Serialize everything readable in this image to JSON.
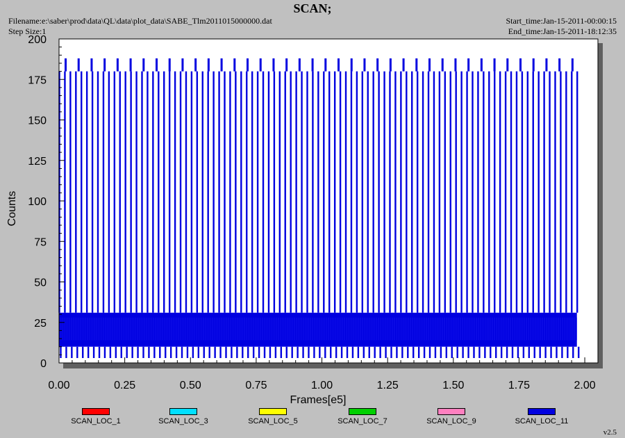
{
  "header": {
    "title": "SCAN;",
    "filename": "Filename:e:\\saber\\prod\\data\\QL\\data\\plot_data\\SABE_Tlm2011015000000.dat",
    "step_size": "Step Size:1",
    "start_time": "Start_time:Jan-15-2011-00:00:15",
    "end_time": "End_time:Jan-15-2011-18:12:35"
  },
  "footer": {
    "version": "v2.5"
  },
  "chart_data": {
    "type": "line",
    "title": "SCAN;",
    "xlabel": "Frames[e5]",
    "ylabel": "Counts",
    "xlim": [
      0,
      2.05
    ],
    "ylim": [
      0,
      200
    ],
    "x_ticks": [
      0.0,
      0.25,
      0.5,
      0.75,
      1.0,
      1.25,
      1.5,
      1.75,
      2.0
    ],
    "x_tick_labels": [
      "0.00",
      "0.25",
      "0.50",
      "0.75",
      "1.00",
      "1.25",
      "1.50",
      "1.75",
      "2.00"
    ],
    "y_ticks": [
      0,
      25,
      50,
      75,
      100,
      125,
      150,
      175,
      200
    ],
    "y_tick_labels": [
      "0",
      "25",
      "50",
      "75",
      "100",
      "125",
      "150",
      "175",
      "200"
    ],
    "grid": false,
    "legend_position": "bottom",
    "data_x_range": [
      0.0,
      1.97
    ],
    "series": [
      {
        "name": "SCAN_LOC_1",
        "color": "#ff0000"
      },
      {
        "name": "SCAN_LOC_3",
        "color": "#00e0ff"
      },
      {
        "name": "SCAN_LOC_5",
        "color": "#ffff00"
      },
      {
        "name": "SCAN_LOC_7",
        "color": "#00d000"
      },
      {
        "name": "SCAN_LOC_9",
        "color": "#ff80c0"
      },
      {
        "name": "SCAN_LOC_11",
        "color": "#0000e0",
        "baseline_band": [
          10,
          31
        ],
        "spike_level": 180,
        "high_spike_level": 188,
        "spike_count": 95,
        "high_spike_count": 40,
        "min_dip": 3
      }
    ]
  }
}
